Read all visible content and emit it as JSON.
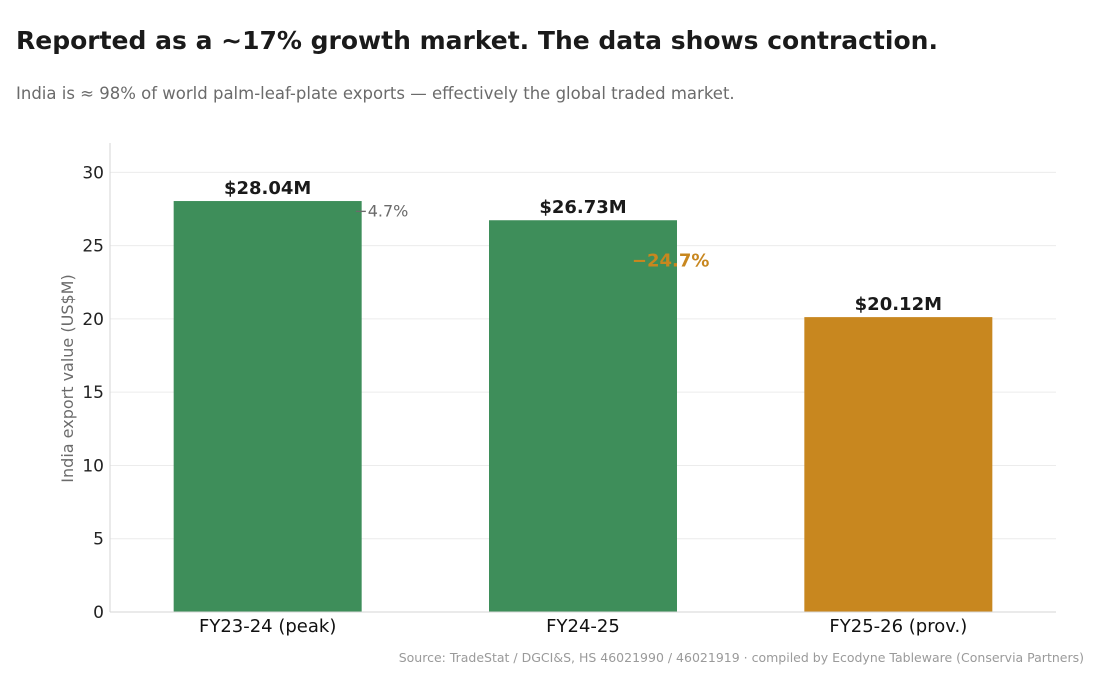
{
  "header": {
    "title": "Reported as a ~17% growth market. The data shows contraction.",
    "subtitle": "India is ≈ 98% of world palm-leaf-plate exports — effectively the global traded market."
  },
  "source": "Source: TradeStat / DGCI&S, HS 46021990 / 46021919 · compiled by Ecodyne Tableware (Conservia Partners)",
  "chart_data": {
    "type": "bar",
    "title": "Reported as a ~17% growth market. The data shows contraction.",
    "subtitle": "India is ≈ 98% of world palm-leaf-plate exports — effectively the global traded market.",
    "xlabel": "",
    "ylabel": "India export value (US$M)",
    "ylim": [
      0,
      32
    ],
    "yticks": [
      0,
      5,
      10,
      15,
      20,
      25,
      30
    ],
    "grid": true,
    "categories": [
      "FY23-24 (peak)",
      "FY24-25",
      "FY25-26 (prov.)"
    ],
    "values": [
      28.04,
      26.73,
      20.12
    ],
    "value_labels": [
      "$28.04M",
      "$26.73M",
      "$20.12M"
    ],
    "bar_colors": [
      "#3e8e5a",
      "#3e8e5a",
      "#c8871f"
    ],
    "annotations": [
      {
        "text": "−4.7%",
        "between": [
          0,
          1
        ],
        "y": 27.4,
        "color": "#6b6b6b",
        "bold": false
      },
      {
        "text": "−24.7%",
        "between": [
          1,
          2
        ],
        "y": 24.0,
        "color": "#c8871f",
        "bold": true
      }
    ]
  }
}
